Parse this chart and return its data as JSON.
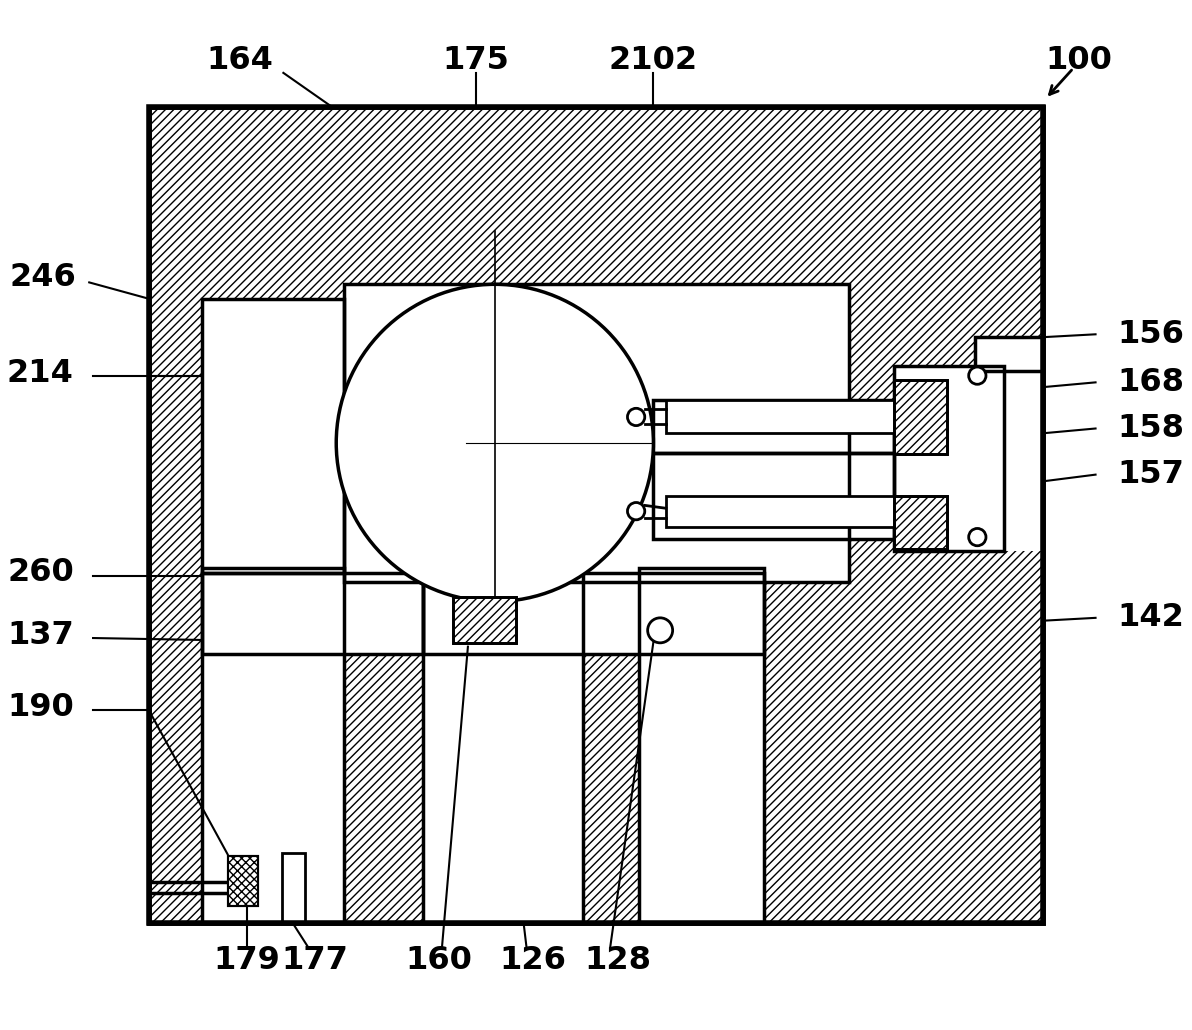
{
  "bg": "#ffffff",
  "figsize": [
    11.92,
    10.3
  ],
  "dpi": 100,
  "lw_main": 2.5,
  "lw_thick": 3.5,
  "hatch": "////",
  "circle": [
    490,
    590,
    165
  ]
}
